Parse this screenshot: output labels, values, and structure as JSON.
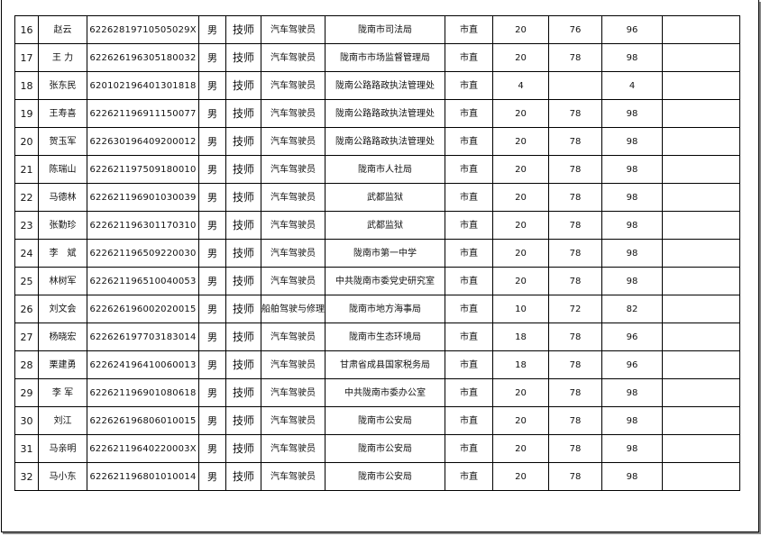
{
  "rows": [
    {
      "no": "16",
      "name": "赵云",
      "id": "62262819710505029X",
      "gender": "男",
      "title": "技师",
      "job": "汽车驾驶员",
      "unit": "陇南市司法局",
      "level": "市直",
      "s1": "20",
      "s2": "76",
      "total": "96",
      "note": ""
    },
    {
      "no": "17",
      "name": "王 力",
      "id": "622626196305180032",
      "gender": "男",
      "title": "技师",
      "job": "汽车驾驶员",
      "unit": "陇南市市场监督管理局",
      "level": "市直",
      "s1": "20",
      "s2": "78",
      "total": "98",
      "note": ""
    },
    {
      "no": "18",
      "name": "张东民",
      "id": "620102196401301818",
      "gender": "男",
      "title": "技师",
      "job": "汽车驾驶员",
      "unit": "陇南公路路政执法管理处",
      "level": "市直",
      "s1": "4",
      "s2": "",
      "total": "4",
      "note": ""
    },
    {
      "no": "19",
      "name": "王寿喜",
      "id": "622621196911150077",
      "gender": "男",
      "title": "技师",
      "job": "汽车驾驶员",
      "unit": "陇南公路路政执法管理处",
      "level": "市直",
      "s1": "20",
      "s2": "78",
      "total": "98",
      "note": ""
    },
    {
      "no": "20",
      "name": "贺玉军",
      "id": "622630196409200012",
      "gender": "男",
      "title": "技师",
      "job": "汽车驾驶员",
      "unit": "陇南公路路政执法管理处",
      "level": "市直",
      "s1": "20",
      "s2": "78",
      "total": "98",
      "note": ""
    },
    {
      "no": "21",
      "name": "陈瑞山",
      "id": "622621197509180010",
      "gender": "男",
      "title": "技师",
      "job": "汽车驾驶员",
      "unit": "陇南市人社局",
      "level": "市直",
      "s1": "20",
      "s2": "78",
      "total": "98",
      "note": ""
    },
    {
      "no": "22",
      "name": "马德林",
      "id": "622621196901030039",
      "gender": "男",
      "title": "技师",
      "job": "汽车驾驶员",
      "unit": "武都监狱",
      "level": "市直",
      "s1": "20",
      "s2": "78",
      "total": "98",
      "note": ""
    },
    {
      "no": "23",
      "name": "张勤珍",
      "id": "622621196301170310",
      "gender": "男",
      "title": "技师",
      "job": "汽车驾驶员",
      "unit": "武都监狱",
      "level": "市直",
      "s1": "20",
      "s2": "78",
      "total": "98",
      "note": ""
    },
    {
      "no": "24",
      "name": "李　斌",
      "id": "622621196509220030",
      "gender": "男",
      "title": "技师",
      "job": "汽车驾驶员",
      "unit": "陇南市第一中学",
      "level": "市直",
      "s1": "20",
      "s2": "78",
      "total": "98",
      "note": ""
    },
    {
      "no": "25",
      "name": "林树军",
      "id": "622621196510040053",
      "gender": "男",
      "title": "技师",
      "job": "汽车驾驶员",
      "unit": "中共陇南市委党史研究室",
      "level": "市直",
      "s1": "20",
      "s2": "78",
      "total": "98",
      "note": ""
    },
    {
      "no": "26",
      "name": "刘文会",
      "id": "622626196002020015",
      "gender": "男",
      "title": "技师",
      "job": "船舶驾驶与修理",
      "unit": "陇南市地方海事局",
      "level": "市直",
      "s1": "10",
      "s2": "72",
      "total": "82",
      "note": ""
    },
    {
      "no": "27",
      "name": "杨晓宏",
      "id": "622626197703183014",
      "gender": "男",
      "title": "技师",
      "job": "汽车驾驶员",
      "unit": "陇南市生态环境局",
      "level": "市直",
      "s1": "18",
      "s2": "78",
      "total": "96",
      "note": ""
    },
    {
      "no": "28",
      "name": "栗建勇",
      "id": "622624196410060013",
      "gender": "男",
      "title": "技师",
      "job": "汽车驾驶员",
      "unit": "甘肃省成县国家税务局",
      "level": "市直",
      "s1": "18",
      "s2": "78",
      "total": "96",
      "note": ""
    },
    {
      "no": "29",
      "name": "李 军",
      "id": "622621196901080618",
      "gender": "男",
      "title": "技师",
      "job": "汽车驾驶员",
      "unit": "中共陇南市委办公室",
      "level": "市直",
      "s1": "20",
      "s2": "78",
      "total": "98",
      "note": ""
    },
    {
      "no": "30",
      "name": "刘江",
      "id": "622626196806010015",
      "gender": "男",
      "title": "技师",
      "job": "汽车驾驶员",
      "unit": "陇南市公安局",
      "level": "市直",
      "s1": "20",
      "s2": "78",
      "total": "98",
      "note": ""
    },
    {
      "no": "31",
      "name": "马亲明",
      "id": "62262119640220003X",
      "gender": "男",
      "title": "技师",
      "job": "汽车驾驶员",
      "unit": "陇南市公安局",
      "level": "市直",
      "s1": "20",
      "s2": "78",
      "total": "98",
      "note": ""
    },
    {
      "no": "32",
      "name": "马小东",
      "id": "622621196801010014",
      "gender": "男",
      "title": "技师",
      "job": "汽车驾驶员",
      "unit": "陇南市公安局",
      "level": "市直",
      "s1": "20",
      "s2": "78",
      "total": "98",
      "note": ""
    }
  ]
}
